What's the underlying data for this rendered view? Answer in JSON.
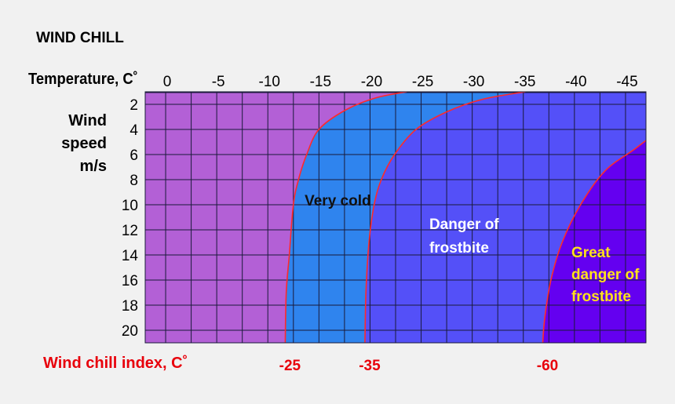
{
  "chart_data": {
    "type": "area",
    "title": "WIND CHILL",
    "xlabel": "Temperature, C˚",
    "ylabel": "Wind speed m/s",
    "ylabel_lines": [
      "Wind",
      "speed",
      "m/s"
    ],
    "bottom_label": "Wind chill index, C˚",
    "x_ticks": [
      "0",
      "-5",
      "-10",
      "-15",
      "-20",
      "-25",
      "-30",
      "-35",
      "-40",
      "-45"
    ],
    "y_ticks": [
      "2",
      "4",
      "6",
      "8",
      "10",
      "12",
      "14",
      "16",
      "18",
      "20"
    ],
    "xlim": [
      2,
      -47
    ],
    "ylim": [
      1,
      21
    ],
    "grid": true,
    "boundaries": [
      {
        "wind_chill_index": "-25",
        "points": [
          [
            -23.6,
            1
          ],
          [
            -20.5,
            1.5
          ],
          [
            -17.5,
            2.5
          ],
          [
            -15,
            4
          ],
          [
            -13.8,
            6
          ],
          [
            -13,
            8
          ],
          [
            -12.5,
            10
          ],
          [
            -12.1,
            14
          ],
          [
            -11.8,
            17
          ],
          [
            -11.7,
            21
          ]
        ]
      },
      {
        "wind_chill_index": "-35",
        "points": [
          [
            -35.2,
            1
          ],
          [
            -31,
            1.6
          ],
          [
            -27.5,
            2.6
          ],
          [
            -24.5,
            4
          ],
          [
            -22.4,
            6
          ],
          [
            -21.1,
            8
          ],
          [
            -20.4,
            10
          ],
          [
            -19.9,
            13
          ],
          [
            -19.6,
            17
          ],
          [
            -19.5,
            21
          ]
        ]
      },
      {
        "wind_chill_index": "-60",
        "points": [
          [
            -49,
            3.6
          ],
          [
            -46,
            5.5
          ],
          [
            -43,
            7.3
          ],
          [
            -40.6,
            10
          ],
          [
            -38.8,
            13
          ],
          [
            -37.7,
            16
          ],
          [
            -37.1,
            19
          ],
          [
            -36.9,
            21
          ]
        ]
      }
    ],
    "zones": [
      {
        "label": "",
        "color": "#b360d6"
      },
      {
        "label": "Very cold",
        "color": "#2f84ee"
      },
      {
        "label": "Danger of frostbite",
        "color": "#5450f8"
      },
      {
        "label": "Great danger of frostbite",
        "color": "#6400f0"
      }
    ],
    "zone_label_colors": [
      "#000000",
      "#111111",
      "#ffffff",
      "#ffe21b"
    ],
    "boundary_color": "#ff2a2a",
    "wci_color": "#e8000b"
  }
}
